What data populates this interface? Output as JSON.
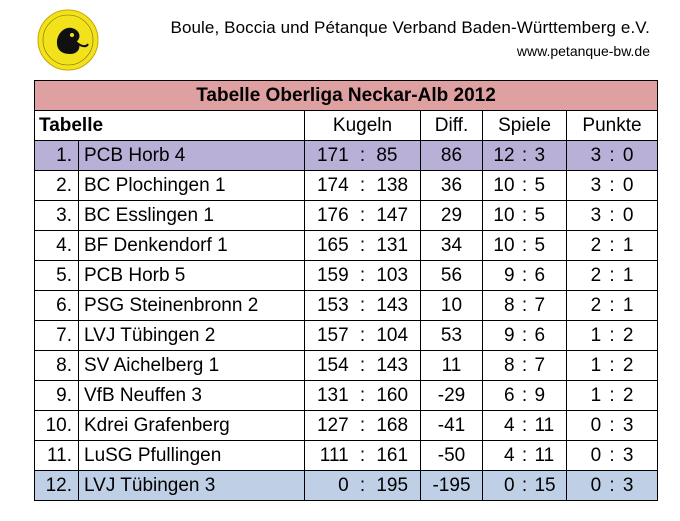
{
  "header": {
    "organization": "Boule, Boccia und Pétanque Verband Baden-Württemberg e.V.",
    "website": "www.petanque-bw.de"
  },
  "table": {
    "title": "Tabelle Oberliga Neckar-Alb 2012",
    "columns": {
      "label": "Tabelle",
      "kugeln": "Kugeln",
      "diff": "Diff.",
      "spiele": "Spiele",
      "punkte": "Punkte"
    },
    "rows": [
      {
        "rank": "1.",
        "team": "PCB Horb 4",
        "kugeln_for": "171",
        "kugeln_against": "85",
        "diff": "86",
        "spiele_won": "12",
        "spiele_lost": "3",
        "punkte_for": "3",
        "punkte_against": "0"
      },
      {
        "rank": "2.",
        "team": "BC Plochingen 1",
        "kugeln_for": "174",
        "kugeln_against": "138",
        "diff": "36",
        "spiele_won": "10",
        "spiele_lost": "5",
        "punkte_for": "3",
        "punkte_against": "0"
      },
      {
        "rank": "3.",
        "team": "BC Esslingen 1",
        "kugeln_for": "176",
        "kugeln_against": "147",
        "diff": "29",
        "spiele_won": "10",
        "spiele_lost": "5",
        "punkte_for": "3",
        "punkte_against": "0"
      },
      {
        "rank": "4.",
        "team": "BF Denkendorf 1",
        "kugeln_for": "165",
        "kugeln_against": "131",
        "diff": "34",
        "spiele_won": "10",
        "spiele_lost": "5",
        "punkte_for": "2",
        "punkte_against": "1"
      },
      {
        "rank": "5.",
        "team": "PCB Horb 5",
        "kugeln_for": "159",
        "kugeln_against": "103",
        "diff": "56",
        "spiele_won": "9",
        "spiele_lost": "6",
        "punkte_for": "2",
        "punkte_against": "1"
      },
      {
        "rank": "6.",
        "team": "PSG Steinenbronn 2",
        "kugeln_for": "153",
        "kugeln_against": "143",
        "diff": "10",
        "spiele_won": "8",
        "spiele_lost": "7",
        "punkte_for": "2",
        "punkte_against": "1"
      },
      {
        "rank": "7.",
        "team": "LVJ Tübingen 2",
        "kugeln_for": "157",
        "kugeln_against": "104",
        "diff": "53",
        "spiele_won": "9",
        "spiele_lost": "6",
        "punkte_for": "1",
        "punkte_against": "2"
      },
      {
        "rank": "8.",
        "team": "SV Aichelberg 1",
        "kugeln_for": "154",
        "kugeln_against": "143",
        "diff": "11",
        "spiele_won": "8",
        "spiele_lost": "7",
        "punkte_for": "1",
        "punkte_against": "2"
      },
      {
        "rank": "9.",
        "team": "VfB Neuffen 3",
        "kugeln_for": "131",
        "kugeln_against": "160",
        "diff": "-29",
        "spiele_won": "6",
        "spiele_lost": "9",
        "punkte_for": "1",
        "punkte_against": "2"
      },
      {
        "rank": "10.",
        "team": "Kdrei Grafenberg",
        "kugeln_for": "127",
        "kugeln_against": "168",
        "diff": "-41",
        "spiele_won": "4",
        "spiele_lost": "11",
        "punkte_for": "0",
        "punkte_against": "3"
      },
      {
        "rank": "11.",
        "team": "LuSG Pfullingen",
        "kugeln_for": "111",
        "kugeln_against": "161",
        "diff": "-50",
        "spiele_won": "4",
        "spiele_lost": "11",
        "punkte_for": "0",
        "punkte_against": "3"
      },
      {
        "rank": "12.",
        "team": "LVJ Tübingen 3",
        "kugeln_for": "0",
        "kugeln_against": "195",
        "diff": "-195",
        "spiele_won": "0",
        "spiele_lost": "15",
        "punkte_for": "0",
        "punkte_against": "3"
      }
    ]
  },
  "colors": {
    "title_background": "#dfa0a2",
    "first_place_highlight": "#b9b0d8",
    "last_place_highlight": "#bfcfe6",
    "logo_yellow": "#f2e21c"
  },
  "icons": {
    "logo": "federation-logo-icon"
  }
}
